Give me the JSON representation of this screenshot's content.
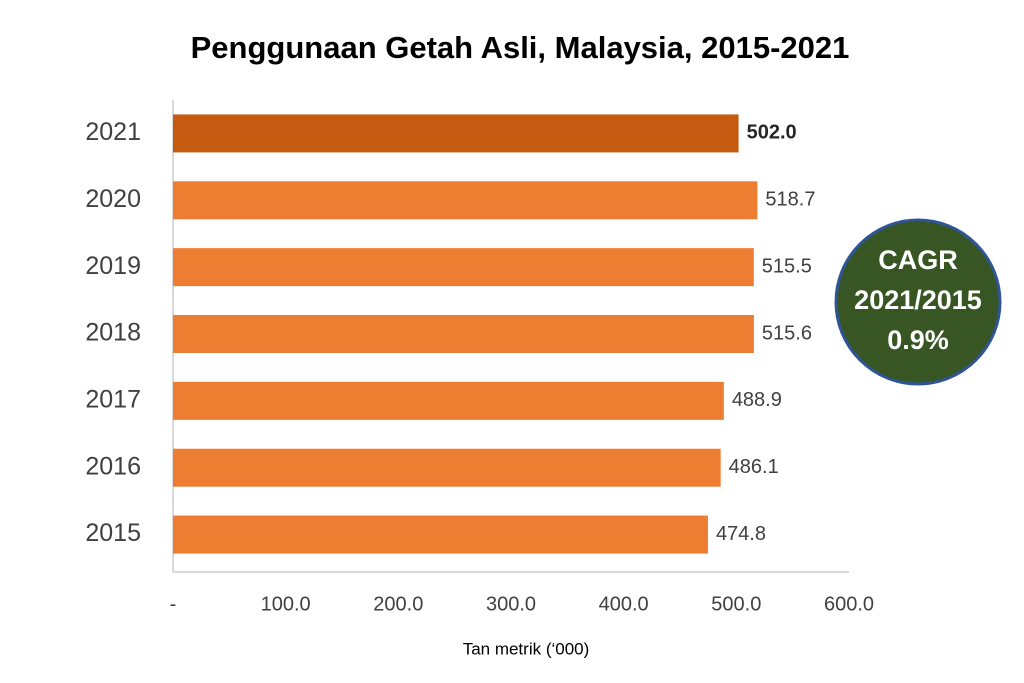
{
  "chart_data": {
    "type": "bar",
    "orientation": "horizontal",
    "title": "Penggunaan Getah Asli, Malaysia, 2015-2021",
    "x_label": "Tan metrik (‘000)",
    "categories": [
      "2021",
      "2020",
      "2019",
      "2018",
      "2017",
      "2016",
      "2015"
    ],
    "values": [
      502.0,
      518.7,
      515.5,
      515.6,
      488.9,
      486.1,
      474.8
    ],
    "value_labels": [
      "502.0",
      "518.7",
      "515.5",
      "515.6",
      "488.9",
      "486.1",
      "474.8"
    ],
    "color": "#ed7d31",
    "colors": [
      "#c55a11",
      "#ed7d31",
      "#ed7d31",
      "#ed7d31",
      "#ed7d31",
      "#ed7d31",
      "#ed7d31"
    ],
    "xlim": [
      0,
      600
    ],
    "xticks": [
      {
        "value": 0,
        "label": "-"
      },
      {
        "value": 100,
        "label": "100.0"
      },
      {
        "value": 200,
        "label": "200.0"
      },
      {
        "value": 300,
        "label": "300.0"
      },
      {
        "value": 400,
        "label": "400.0"
      },
      {
        "value": 500,
        "label": "500.0"
      },
      {
        "value": 600,
        "label": "600.0"
      }
    ],
    "annotation": [
      "CAGR",
      "2021/2015",
      "0.9%"
    ]
  }
}
